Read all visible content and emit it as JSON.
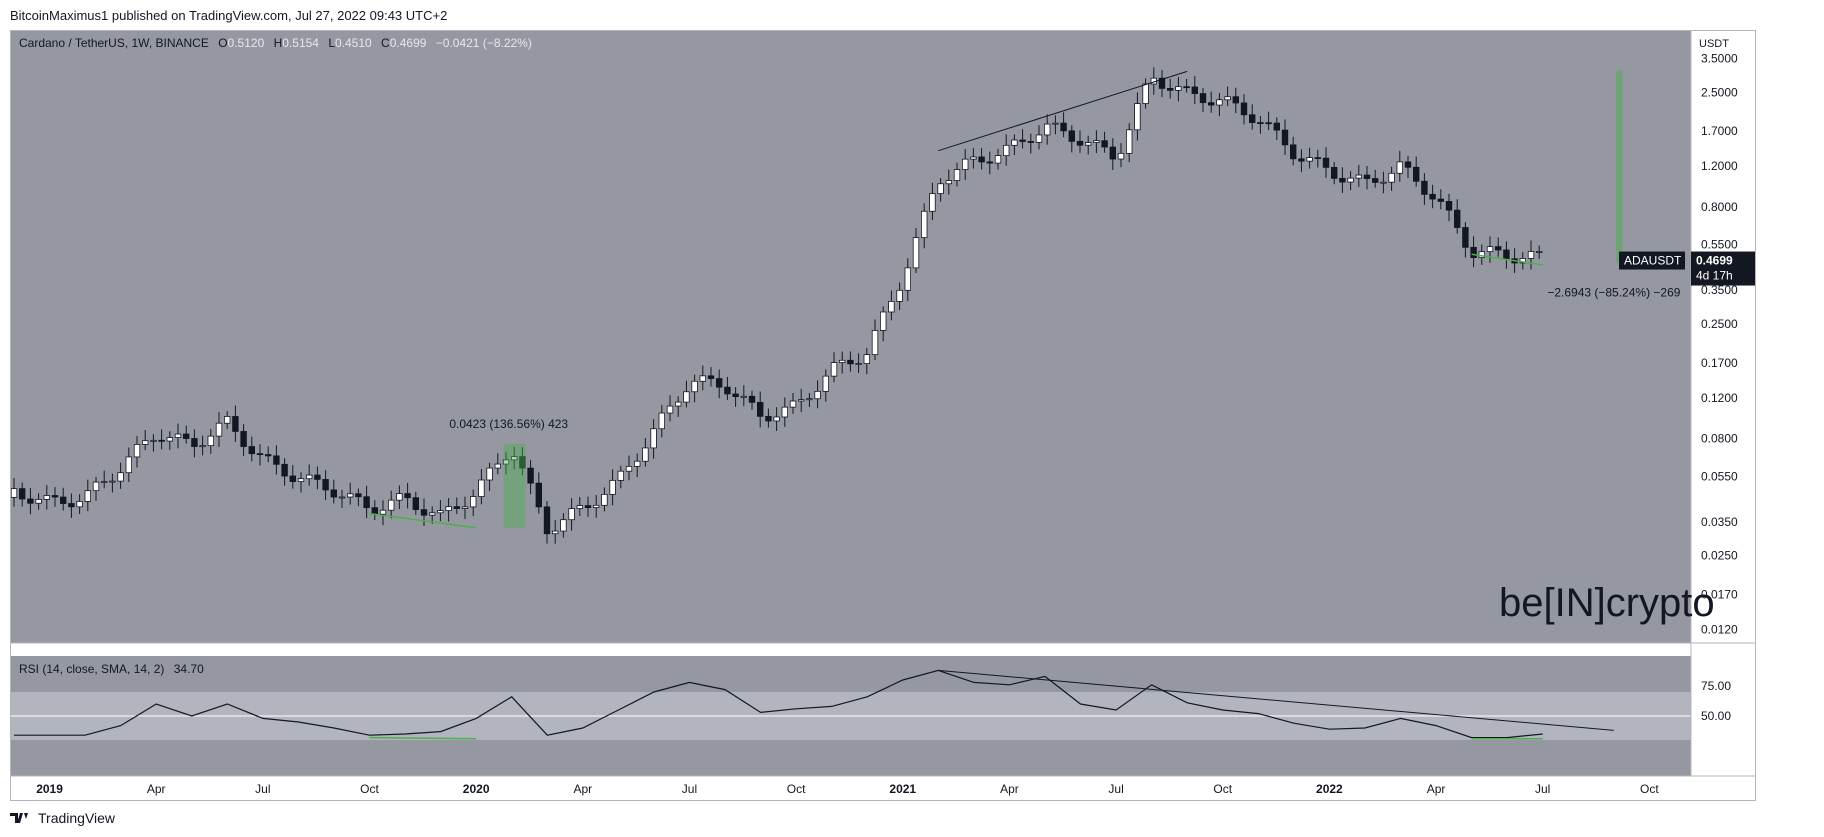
{
  "header": {
    "publisher": "BitcoinMaximus1 published on TradingView.com, Jul 27, 2022 09:43 UTC+2"
  },
  "legend": {
    "symbol": "Cardano / TetherUS, 1W, BINANCE",
    "o_label": "O",
    "o_value": "0.5120",
    "h_label": "H",
    "h_value": "0.5154",
    "l_label": "L",
    "l_value": "0.4510",
    "c_label": "C",
    "c_value": "0.4699",
    "change": "−0.0421 (−8.22%)"
  },
  "price_axis": {
    "unit": "USDT",
    "ticks": [
      "3.5000",
      "2.5000",
      "1.7000",
      "1.2000",
      "0.8000",
      "0.5500",
      "0.3500",
      "0.2500",
      "0.1700",
      "0.1200",
      "0.0800",
      "0.0550",
      "0.0350",
      "0.0250",
      "0.0170",
      "0.0120"
    ]
  },
  "price_tag": {
    "symbol": "ADAUSDT",
    "price": "0.4699",
    "countdown": "4d 17h"
  },
  "annotations": {
    "measure_2020": "0.0423 (136.56%) 423",
    "measure_2022": "−2.6943 (−85.24%) −269"
  },
  "rsi": {
    "label": "RSI (14, close, SMA, 14, 2)",
    "value": "34.70",
    "ticks": [
      "75.00",
      "50.00"
    ]
  },
  "time_axis": {
    "labels": [
      "2019",
      "Apr",
      "Jul",
      "Oct",
      "2020",
      "Apr",
      "Jul",
      "Oct",
      "2021",
      "Apr",
      "Jul",
      "Oct",
      "2022",
      "Apr",
      "Jul",
      "Oct"
    ]
  },
  "watermark": {
    "text": "be[IN]crypto"
  },
  "footer": {
    "brand": "TradingView"
  },
  "colors": {
    "pane_bg": "#9598a1",
    "up_body": "#ffffff",
    "down_body": "#131722",
    "measure": "#4caf50",
    "rsi_band": "#b2b5be"
  },
  "chart_data": {
    "type": "candlestick",
    "title": "Cardano / TetherUS, 1W, BINANCE",
    "y_scale": "log",
    "ylim": [
      0.0105,
      4.6
    ],
    "xlabel": "",
    "ylabel": "USDT",
    "grid": false,
    "close_points": [
      [
        "2018-12",
        0.046
      ],
      [
        "2019-01",
        0.041
      ],
      [
        "2019-02",
        0.043
      ],
      [
        "2019-03",
        0.058
      ],
      [
        "2019-04",
        0.082
      ],
      [
        "2019-05",
        0.072
      ],
      [
        "2019-06",
        0.09
      ],
      [
        "2019-07",
        0.062
      ],
      [
        "2019-08",
        0.052
      ],
      [
        "2019-09",
        0.046
      ],
      [
        "2019-10",
        0.038
      ],
      [
        "2019-11",
        0.042
      ],
      [
        "2019-12",
        0.035
      ],
      [
        "2020-01",
        0.045
      ],
      [
        "2020-02",
        0.071
      ],
      [
        "2020-03",
        0.031
      ],
      [
        "2020-04",
        0.038
      ],
      [
        "2020-05",
        0.05
      ],
      [
        "2020-06",
        0.082
      ],
      [
        "2020-07",
        0.135
      ],
      [
        "2020-08",
        0.13
      ],
      [
        "2020-09",
        0.095
      ],
      [
        "2020-10",
        0.104
      ],
      [
        "2020-11",
        0.15
      ],
      [
        "2020-12",
        0.18
      ],
      [
        "2021-01",
        0.38
      ],
      [
        "2021-02",
        1.0
      ],
      [
        "2021-03",
        1.2
      ],
      [
        "2021-04",
        1.35
      ],
      [
        "2021-05",
        1.7
      ],
      [
        "2021-06",
        1.5
      ],
      [
        "2021-07",
        1.25
      ],
      [
        "2021-08",
        2.8
      ],
      [
        "2021-09",
        2.35
      ],
      [
        "2021-10",
        2.2
      ],
      [
        "2021-11",
        1.85
      ],
      [
        "2021-12",
        1.32
      ],
      [
        "2022-01",
        1.1
      ],
      [
        "2022-02",
        0.97
      ],
      [
        "2022-03",
        1.15
      ],
      [
        "2022-04",
        0.85
      ],
      [
        "2022-05",
        0.5
      ],
      [
        "2022-06",
        0.48
      ],
      [
        "2022-07",
        0.4699
      ]
    ],
    "trendline_price": [
      [
        "2021-02",
        1.4
      ],
      [
        "2021-09",
        3.08
      ]
    ],
    "green_baselines": [
      [
        [
          "2019-10",
          0.038
        ],
        [
          "2020-01",
          0.033
        ]
      ],
      [
        [
          "2022-05",
          0.5
        ],
        [
          "2022-07",
          0.45
        ]
      ]
    ],
    "measure_2020": {
      "from": "2020-02",
      "from_price": 0.033,
      "to_price": 0.076,
      "label": "0.0423 (136.56%) 423"
    },
    "measure_2022": {
      "date": "2022-10",
      "from_price": 3.1,
      "to_price": 0.46,
      "label": "−2.6943 (−85.24%) −269"
    },
    "rsi_series": [
      [
        "2018-12",
        34
      ],
      [
        "2019-02",
        34
      ],
      [
        "2019-03",
        42
      ],
      [
        "2019-04",
        60
      ],
      [
        "2019-05",
        50
      ],
      [
        "2019-06",
        60
      ],
      [
        "2019-07",
        48
      ],
      [
        "2019-08",
        45
      ],
      [
        "2019-09",
        40
      ],
      [
        "2019-10",
        34
      ],
      [
        "2019-11",
        35
      ],
      [
        "2019-12",
        37
      ],
      [
        "2020-01",
        48
      ],
      [
        "2020-02",
        66
      ],
      [
        "2020-03",
        34
      ],
      [
        "2020-04",
        40
      ],
      [
        "2020-05",
        55
      ],
      [
        "2020-06",
        70
      ],
      [
        "2020-07",
        78
      ],
      [
        "2020-08",
        72
      ],
      [
        "2020-09",
        53
      ],
      [
        "2020-10",
        56
      ],
      [
        "2020-11",
        58
      ],
      [
        "2020-12",
        66
      ],
      [
        "2021-01",
        80
      ],
      [
        "2021-02",
        88
      ],
      [
        "2021-03",
        78
      ],
      [
        "2021-04",
        76
      ],
      [
        "2021-05",
        83
      ],
      [
        "2021-06",
        60
      ],
      [
        "2021-07",
        55
      ],
      [
        "2021-08",
        76
      ],
      [
        "2021-09",
        61
      ],
      [
        "2021-10",
        55
      ],
      [
        "2021-11",
        52
      ],
      [
        "2021-12",
        44
      ],
      [
        "2022-01",
        39
      ],
      [
        "2022-02",
        40
      ],
      [
        "2022-03",
        48
      ],
      [
        "2022-04",
        42
      ],
      [
        "2022-05",
        32
      ],
      [
        "2022-06",
        32
      ],
      [
        "2022-07",
        35
      ]
    ],
    "rsi_trendline": [
      [
        "2021-02",
        88
      ],
      [
        "2022-09",
        38
      ]
    ],
    "rsi_bands": [
      30,
      50,
      70
    ]
  }
}
